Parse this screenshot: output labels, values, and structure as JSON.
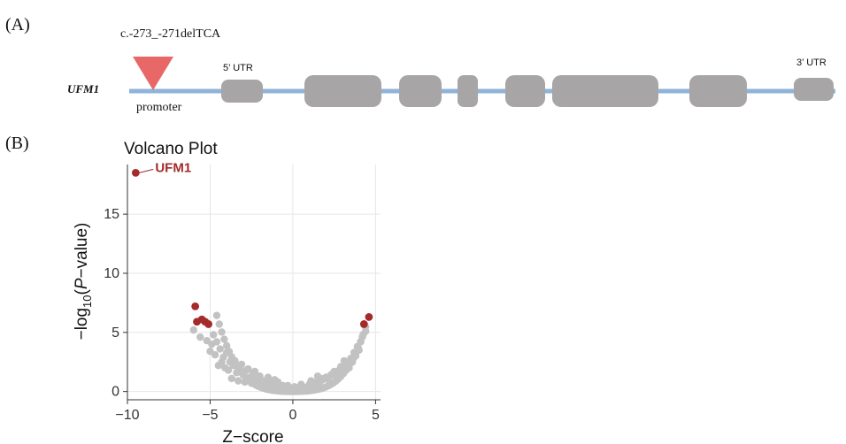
{
  "panel_a": {
    "label": "(A)",
    "gene": "UFM1",
    "variant": "c.-273_-271delTCA",
    "promoter_label": "promoter",
    "utr5_label": "5’ UTR",
    "utr3_label": "3’ UTR",
    "colors": {
      "backbone": "#8fb3d9",
      "exon": "#a7a5a6",
      "marker": "#e86868"
    }
  },
  "panel_b": {
    "label": "(B)"
  },
  "chart_data": {
    "type": "scatter",
    "title": "Volcano Plot",
    "xlabel": "Z−score",
    "ylabel_prefix": "−log",
    "ylabel_sub": "10",
    "ylabel_open": "(",
    "ylabel_italic": "P",
    "ylabel_suffix": "−value)",
    "xlim": [
      -10,
      5.3
    ],
    "ylim": [
      -0.7,
      19.2
    ],
    "x_ticks": [
      -10,
      -5,
      0,
      5
    ],
    "x_tick_labels": [
      "−10",
      "−5",
      "0",
      "5"
    ],
    "y_ticks": [
      0,
      5,
      10,
      15
    ],
    "y_tick_labels": [
      "0",
      "5",
      "10",
      "15"
    ],
    "grid": true,
    "annotation": {
      "text": "UFM1",
      "x": -9.5,
      "y": 18.5
    },
    "colors": {
      "significant": "#a52a2a",
      "background": "#c2c2c2",
      "grid": "#e6e6e6"
    },
    "significant_points": [
      [
        -9.5,
        18.5
      ],
      [
        -5.9,
        7.2
      ],
      [
        -5.8,
        5.9
      ],
      [
        -5.5,
        6.1
      ],
      [
        -5.3,
        5.9
      ],
      [
        -5.1,
        5.7
      ],
      [
        4.3,
        5.7
      ],
      [
        4.6,
        6.3
      ]
    ],
    "background_points": [
      [
        -6.0,
        5.2
      ],
      [
        -5.6,
        4.6
      ],
      [
        -5.2,
        4.3
      ],
      [
        -4.9,
        4.0
      ],
      [
        -4.8,
        4.8
      ],
      [
        -4.6,
        4.2
      ],
      [
        -5.0,
        3.4
      ],
      [
        -4.7,
        3.1
      ],
      [
        -4.4,
        3.6
      ],
      [
        -4.2,
        2.9
      ],
      [
        -4.0,
        3.3
      ],
      [
        -3.8,
        2.5
      ],
      [
        -4.5,
        2.2
      ],
      [
        -4.1,
        2.0
      ],
      [
        -3.9,
        1.8
      ],
      [
        -3.6,
        2.2
      ],
      [
        -3.4,
        1.6
      ],
      [
        -3.2,
        2.0
      ],
      [
        -3.0,
        1.4
      ],
      [
        -2.8,
        1.8
      ],
      [
        -2.6,
        1.2
      ],
      [
        -2.4,
        1.5
      ],
      [
        -2.2,
        1.0
      ],
      [
        -2.0,
        1.3
      ],
      [
        -3.7,
        1.1
      ],
      [
        -3.3,
        0.9
      ],
      [
        -2.9,
        0.8
      ],
      [
        -2.5,
        0.7
      ],
      [
        -2.1,
        0.6
      ],
      [
        -1.8,
        0.9
      ],
      [
        -1.6,
        0.5
      ],
      [
        -1.4,
        0.8
      ],
      [
        -1.2,
        0.4
      ],
      [
        -1.0,
        0.6
      ],
      [
        -0.8,
        0.3
      ],
      [
        -0.6,
        0.5
      ],
      [
        -0.4,
        0.2
      ],
      [
        -0.2,
        0.3
      ],
      [
        0.0,
        0.1
      ],
      [
        0.2,
        0.3
      ],
      [
        0.4,
        0.2
      ],
      [
        0.6,
        0.4
      ],
      [
        0.8,
        0.3
      ],
      [
        1.0,
        0.6
      ],
      [
        1.2,
        0.5
      ],
      [
        1.4,
        0.8
      ],
      [
        1.6,
        0.7
      ],
      [
        1.8,
        1.0
      ],
      [
        2.0,
        1.2
      ],
      [
        2.2,
        0.9
      ],
      [
        2.4,
        1.5
      ],
      [
        2.6,
        1.3
      ],
      [
        2.8,
        1.8
      ],
      [
        3.0,
        1.6
      ],
      [
        3.2,
        2.2
      ],
      [
        3.4,
        2.0
      ],
      [
        3.5,
        2.8
      ],
      [
        3.6,
        2.5
      ],
      [
        3.7,
        3.3
      ],
      [
        3.8,
        3.0
      ],
      [
        3.9,
        3.8
      ],
      [
        4.0,
        3.5
      ],
      [
        4.1,
        4.2
      ],
      [
        4.2,
        4.6
      ],
      [
        4.4,
        5.1
      ],
      [
        3.3,
        2.4
      ],
      [
        2.9,
        2.1
      ],
      [
        2.5,
        1.7
      ],
      [
        -3.5,
        2.6
      ],
      [
        -3.1,
        2.3
      ],
      [
        -2.7,
        1.9
      ],
      [
        -1.5,
        1.2
      ],
      [
        -0.9,
        0.8
      ],
      [
        -0.3,
        0.5
      ],
      [
        0.5,
        0.6
      ],
      [
        1.1,
        0.9
      ],
      [
        1.7,
        1.1
      ],
      [
        2.3,
        1.4
      ],
      [
        -4.3,
        2.5
      ],
      [
        -2.3,
        1.7
      ],
      [
        0.1,
        0.4
      ],
      [
        -1.1,
        1.0
      ],
      [
        1.5,
        1.3
      ],
      [
        3.1,
        2.6
      ]
    ]
  }
}
